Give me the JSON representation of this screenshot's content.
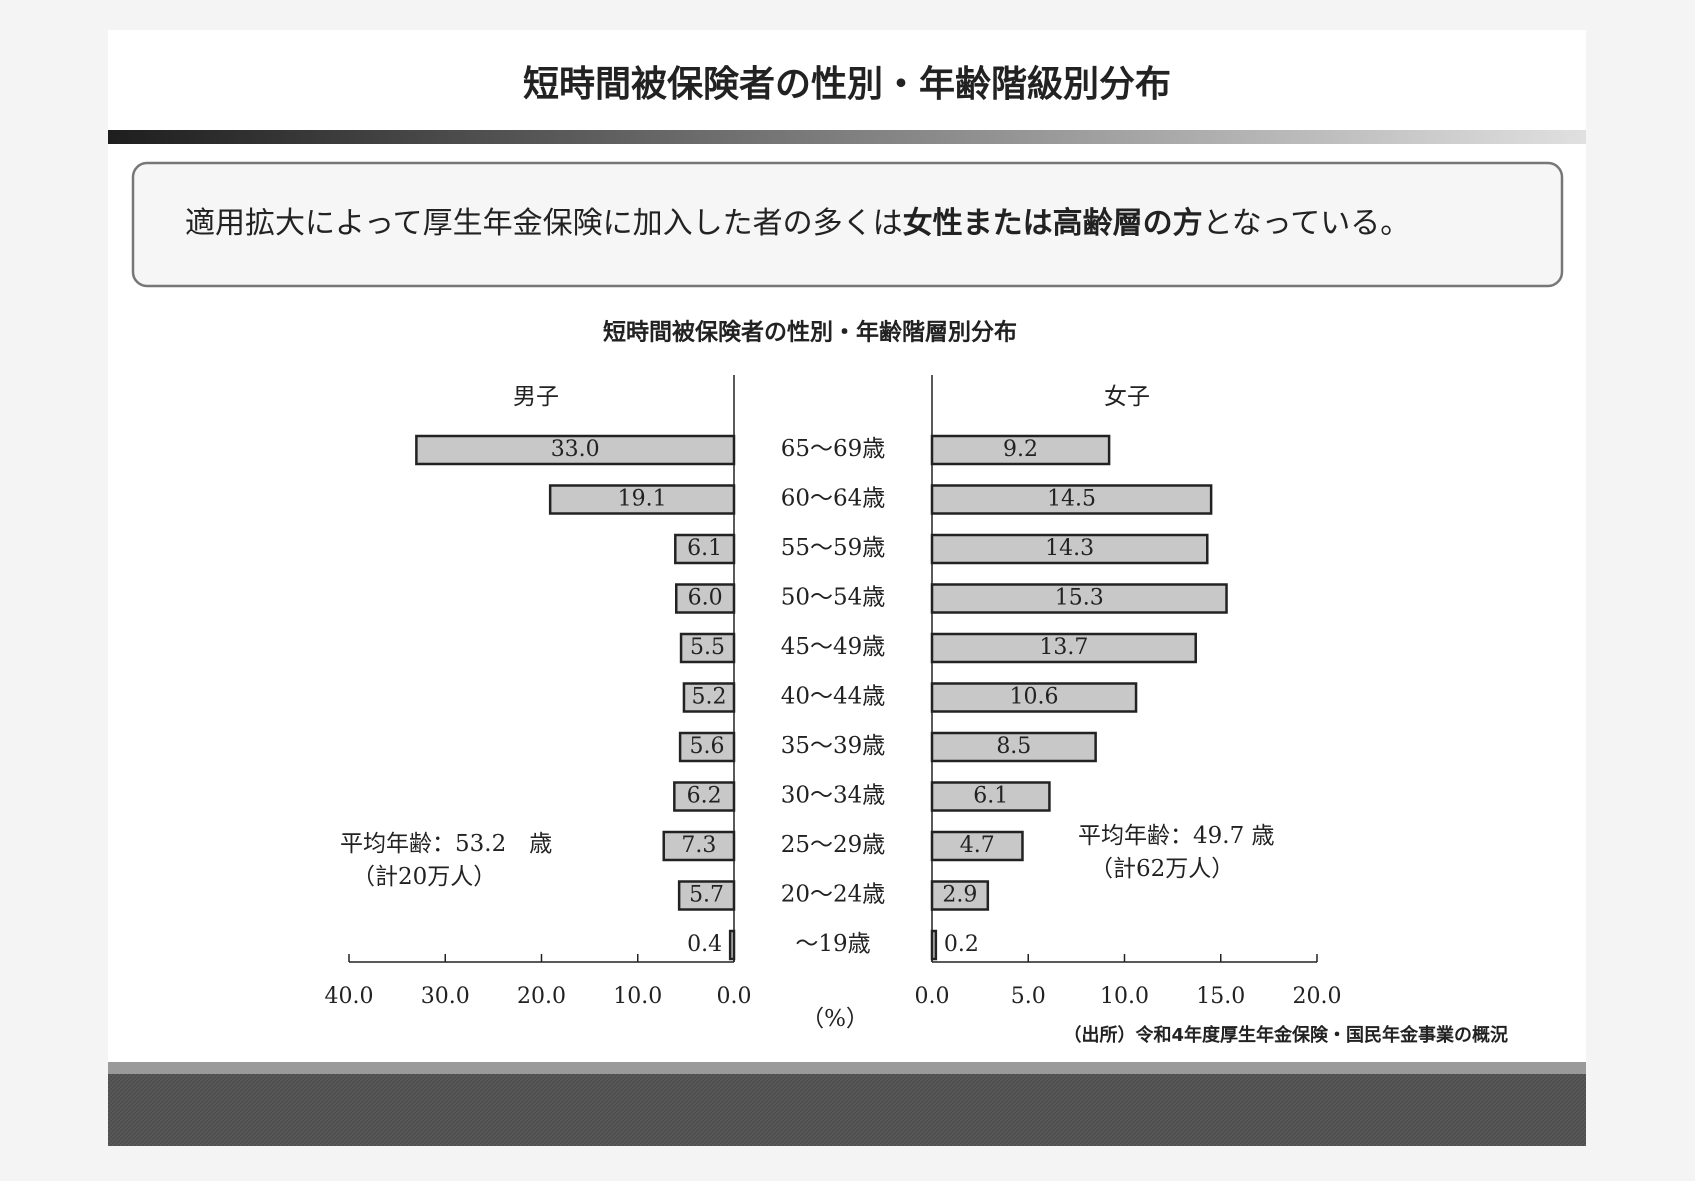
{
  "header": {
    "title": "短時間被保険者の性別・年齢階級別分布"
  },
  "callout": {
    "parts": [
      "適用拡大によって厚生年金保険に加入した者の多くは",
      "女性または高齢層の方",
      "となっている。"
    ]
  },
  "chart_data": {
    "type": "pyramid",
    "title": "短時間被保険者の性別・年齢階層別分布",
    "categories": [
      "65～69歳",
      "60～64歳",
      "55～59歳",
      "50～54歳",
      "45～49歳",
      "40～44歳",
      "35～39歳",
      "30～34歳",
      "25～29歳",
      "20～24歳",
      "～19歳"
    ],
    "series": [
      {
        "name": "男子",
        "color": "#c8c8c8",
        "values": [
          33.0,
          19.1,
          6.1,
          6.0,
          5.5,
          5.2,
          5.6,
          6.2,
          7.3,
          5.7,
          0.4
        ],
        "value_labels": [
          "33.0",
          "19.1",
          "6.1",
          "6.0",
          "5.5",
          "5.2",
          "5.6",
          "6.2",
          "7.3",
          "5.7",
          "0.4"
        ],
        "xlim": [
          40,
          0
        ],
        "xticks": [
          {
            "value": 40,
            "label": "40.0"
          },
          {
            "value": 30,
            "label": "30.0"
          },
          {
            "value": 20,
            "label": "20.0"
          },
          {
            "value": 10,
            "label": "10.0"
          },
          {
            "value": 0,
            "label": "0.0"
          }
        ],
        "annotation": [
          "平均年齢：53.2　歳",
          "（計20万人）"
        ]
      },
      {
        "name": "女子",
        "color": "#c8c8c8",
        "values": [
          9.2,
          14.5,
          14.3,
          15.3,
          13.7,
          10.6,
          8.5,
          6.1,
          4.7,
          2.9,
          0.2
        ],
        "value_labels": [
          "9.2",
          "14.5",
          "14.3",
          "15.3",
          "13.7",
          "10.6",
          "8.5",
          "6.1",
          "4.7",
          "2.9",
          "0.2"
        ],
        "xlim": [
          0,
          20
        ],
        "xticks": [
          {
            "value": 0,
            "label": "0.0"
          },
          {
            "value": 5,
            "label": "5.0"
          },
          {
            "value": 10,
            "label": "10.0"
          },
          {
            "value": 15,
            "label": "15.0"
          },
          {
            "value": 20,
            "label": "20.0"
          }
        ],
        "annotation": [
          "平均年齢：49.7 歳",
          "（計62万人）"
        ]
      }
    ],
    "unit_label": "（%）",
    "source": "（出所）令和4年度厚生年金保険・国民年金事業の概況"
  }
}
